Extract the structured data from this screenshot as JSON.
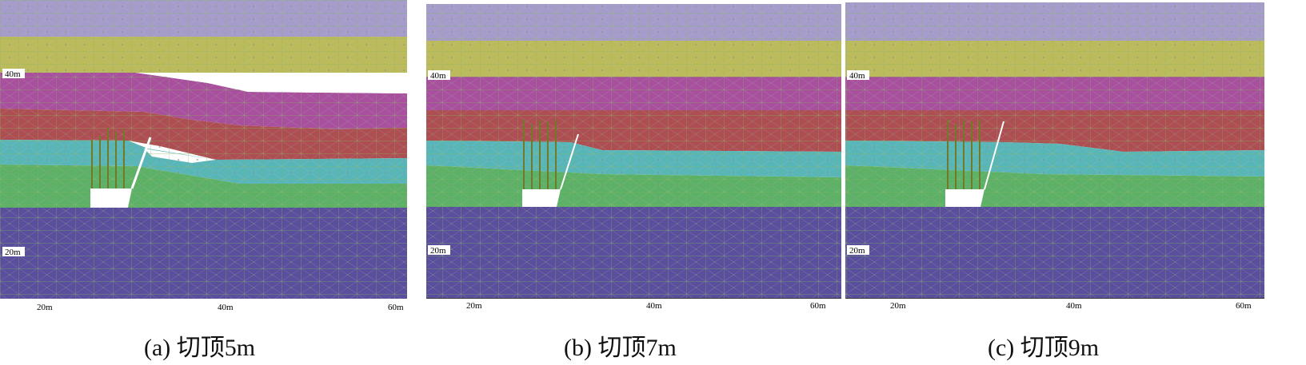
{
  "panels": [
    {
      "caption": "(a) 切顶5m",
      "labels": {
        "y_upper": "40m",
        "y_lower": "20m",
        "x1": "20m",
        "x2": "40m",
        "x3": "60m"
      }
    },
    {
      "caption": "(b) 切顶7m",
      "labels": {
        "y_upper": "40m",
        "y_lower": "20m",
        "x1": "20m",
        "x2": "40m",
        "x3": "60m"
      }
    },
    {
      "caption": "(c) 切顶9m",
      "labels": {
        "y_upper": "40m",
        "y_lower": "20m",
        "x1": "20m",
        "x2": "40m",
        "x3": "60m"
      }
    }
  ],
  "layer_colors": {
    "lavender": "#a59ccb",
    "olive": "#bcbb5c",
    "magenta": "#a8509e",
    "red": "#ad4e52",
    "cyan": "#58b6b9",
    "green": "#5db167",
    "navy": "#5a4f9c",
    "grid": "#86b65a",
    "support": "#6f7a2a"
  }
}
